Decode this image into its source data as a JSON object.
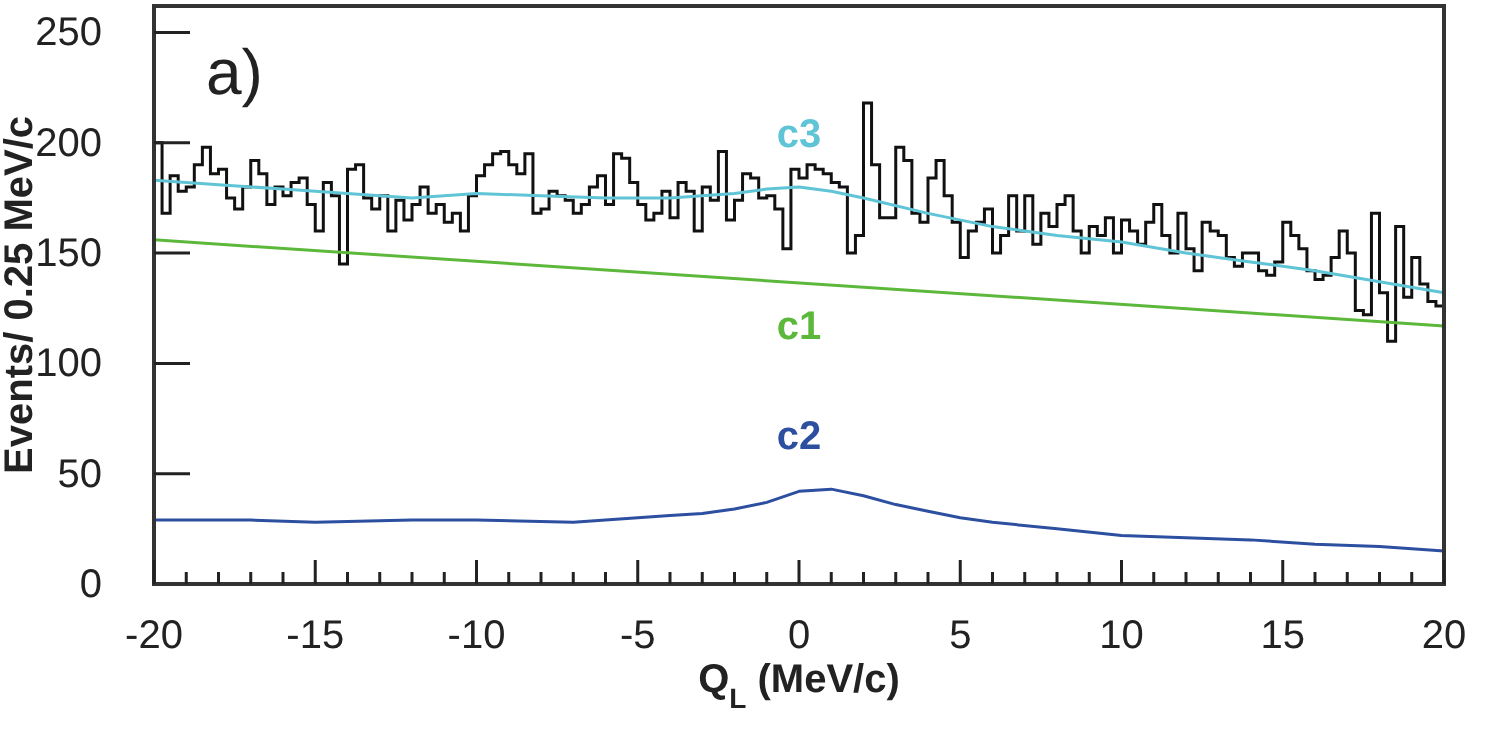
{
  "chart_data": {
    "type": "line",
    "xlabel": "Q$_{L}$ (MeV/c)",
    "ylabel": "Events/ 0.25 MeV/c",
    "annotations": [
      "a)"
    ],
    "series": [
      {
        "type": "step",
        "color": "#111111",
        "x": [
          -20,
          -19.75,
          -19.5,
          -19.25,
          -19,
          -18.75,
          -18.5,
          -18.25,
          -18,
          -17.75,
          -17.5,
          -17.25,
          -17,
          -16.75,
          -16.5,
          -16.25,
          -16,
          -15.75,
          -15.5,
          -15.25,
          -15,
          -14.75,
          -14.5,
          -14.25,
          -14,
          -13.75,
          -13.5,
          -13.25,
          -13,
          -12.75,
          -12.5,
          -12.25,
          -12,
          -11.75,
          -11.5,
          -11.25,
          -11,
          -10.75,
          -10.5,
          -10.25,
          -10,
          -9.75,
          -9.5,
          -9.25,
          -9,
          -8.75,
          -8.5,
          -8.25,
          -8,
          -7.75,
          -7.5,
          -7.25,
          -7,
          -6.75,
          -6.5,
          -6.25,
          -6,
          -5.75,
          -5.5,
          -5.25,
          -5,
          -4.75,
          -4.5,
          -4.25,
          -4,
          -3.75,
          -3.5,
          -3.25,
          -3,
          -2.75,
          -2.5,
          -2.25,
          -2,
          -1.75,
          -1.5,
          -1.25,
          -1,
          -0.75,
          -0.5,
          -0.25,
          0,
          0.25,
          0.5,
          0.75,
          1,
          1.25,
          1.5,
          1.75,
          2,
          2.25,
          2.5,
          2.75,
          3,
          3.25,
          3.5,
          3.75,
          4,
          4.25,
          4.5,
          4.75,
          5,
          5.25,
          5.5,
          5.75,
          6,
          6.25,
          6.5,
          6.75,
          7,
          7.25,
          7.5,
          7.75,
          8,
          8.25,
          8.5,
          8.75,
          9,
          9.25,
          9.5,
          9.75,
          10,
          10.25,
          10.5,
          10.75,
          11,
          11.25,
          11.5,
          11.75,
          12,
          12.25,
          12.5,
          12.75,
          13,
          13.25,
          13.5,
          13.75,
          14,
          14.25,
          14.5,
          14.75,
          15,
          15.25,
          15.5,
          15.75,
          16,
          16.25,
          16.5,
          16.75,
          17,
          17.25,
          17.5,
          17.75,
          18,
          18.25,
          18.5,
          18.75,
          19,
          19.25,
          19.5,
          19.75,
          20
        ],
        "values": [
          200,
          168,
          185,
          178,
          180,
          190,
          198,
          186,
          188,
          175,
          170,
          180,
          192,
          186,
          172,
          180,
          176,
          182,
          184,
          172,
          160,
          182,
          176,
          145,
          188,
          190,
          175,
          170,
          176,
          160,
          174,
          165,
          172,
          180,
          168,
          172,
          164,
          168,
          160,
          176,
          185,
          190,
          195,
          196,
          190,
          186,
          195,
          168,
          170,
          178,
          176,
          174,
          168,
          172,
          180,
          185,
          172,
          195,
          193,
          182,
          172,
          165,
          168,
          178,
          166,
          182,
          178,
          160,
          180,
          174,
          196,
          165,
          174,
          186,
          184,
          175,
          176,
          170,
          152,
          188,
          184,
          190,
          188,
          186,
          182,
          180,
          150,
          158,
          218,
          190,
          166,
          166,
          198,
          192,
          168,
          164,
          184,
          192,
          176,
          164,
          148,
          160,
          164,
          170,
          150,
          158,
          176,
          160,
          176,
          154,
          168,
          162,
          172,
          176,
          160,
          150,
          162,
          158,
          166,
          150,
          165,
          160,
          154,
          164,
          172,
          158,
          150,
          168,
          152,
          142,
          164,
          160,
          158,
          148,
          144,
          150,
          150,
          142,
          140,
          146,
          164,
          158,
          152,
          142,
          138,
          140,
          148,
          160,
          150,
          124,
          122,
          168,
          132,
          110,
          162,
          130,
          148,
          136,
          128,
          126,
          126
        ]
      },
      {
        "type": "line",
        "name": "c3",
        "color": "#5fc4d6",
        "x": [
          -20,
          -18,
          -16,
          -14,
          -12,
          -10,
          -8,
          -6,
          -4,
          -2,
          -1,
          0,
          1,
          2,
          4,
          6,
          8,
          10,
          12,
          14,
          16,
          18,
          20
        ],
        "values": [
          183,
          181,
          179,
          177,
          175,
          177,
          176,
          175,
          175,
          177,
          179,
          180,
          178,
          175,
          168,
          162,
          158,
          155,
          150,
          146,
          142,
          137,
          132
        ]
      },
      {
        "type": "line",
        "name": "c1",
        "color": "#5cb83a",
        "x": [
          -20,
          20
        ],
        "values": [
          156,
          117
        ]
      },
      {
        "type": "line",
        "name": "c2",
        "color": "#2c4fa0",
        "x": [
          -20,
          -17,
          -15,
          -12,
          -10,
          -7,
          -5,
          -4,
          -3,
          -2,
          -1,
          0,
          1,
          2,
          3,
          4,
          5,
          6,
          8,
          10,
          12,
          14,
          16,
          18,
          20
        ],
        "values": [
          29,
          29,
          28,
          29,
          29,
          28,
          30,
          31,
          32,
          34,
          37,
          42,
          43,
          40,
          36,
          33,
          30,
          28,
          25,
          22,
          21,
          20,
          18,
          17,
          15
        ]
      }
    ],
    "xlim": [
      -20,
      20
    ],
    "ylim": [
      0,
      262
    ],
    "xticks": [
      -20,
      {
        "value": -19,
        "label": null
      },
      {
        "value": -18,
        "label": null
      },
      {
        "value": -17,
        "label": null
      },
      {
        "value": -16,
        "label": null
      },
      -15,
      {
        "value": -14,
        "label": null
      },
      {
        "value": -13,
        "label": null
      },
      {
        "value": -12,
        "label": null
      },
      {
        "value": -11,
        "label": null
      },
      -10,
      {
        "value": -9,
        "label": null
      },
      {
        "value": -8,
        "label": null
      },
      {
        "value": -7,
        "label": null
      },
      {
        "value": -6,
        "label": null
      },
      -5,
      {
        "value": -4,
        "label": null
      },
      {
        "value": -3,
        "label": null
      },
      {
        "value": -2,
        "label": null
      },
      {
        "value": -1,
        "label": null
      },
      0,
      {
        "value": 1,
        "label": null
      },
      {
        "value": 2,
        "label": null
      },
      {
        "value": 3,
        "label": null
      },
      {
        "value": 4,
        "label": null
      },
      5,
      {
        "value": 6,
        "label": null
      },
      {
        "value": 7,
        "label": null
      },
      {
        "value": 8,
        "label": null
      },
      {
        "value": 9,
        "label": null
      },
      10,
      {
        "value": 11,
        "label": null
      },
      {
        "value": 12,
        "label": null
      },
      {
        "value": 13,
        "label": null
      },
      {
        "value": 14,
        "label": null
      },
      15,
      {
        "value": 16,
        "label": null
      },
      {
        "value": 17,
        "label": null
      },
      {
        "value": 18,
        "label": null
      },
      {
        "value": 19,
        "label": null
      },
      20
    ],
    "yticks": [
      0,
      50,
      100,
      150,
      200,
      250
    ]
  }
}
